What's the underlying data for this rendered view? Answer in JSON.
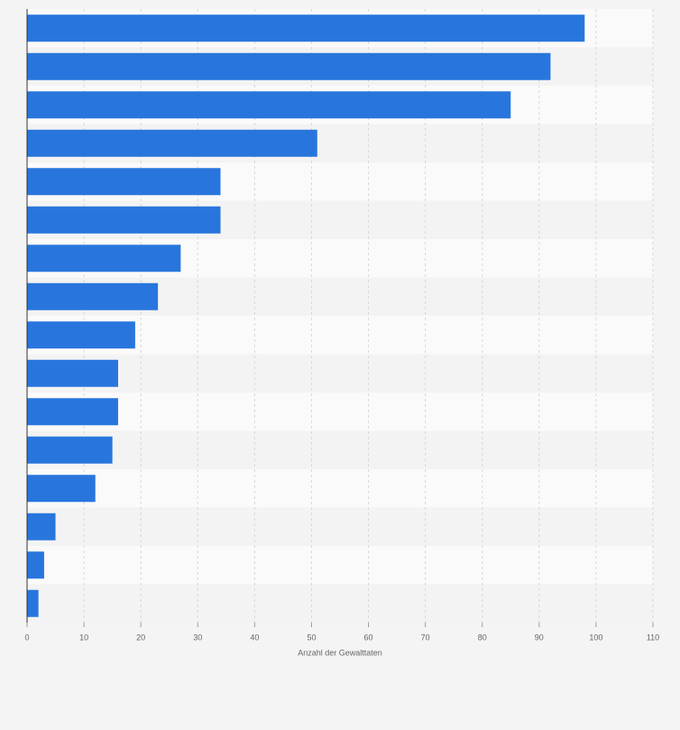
{
  "chart_data": {
    "type": "bar",
    "orientation": "horizontal",
    "x_label": "Anzahl der Gewalttaten",
    "categories": [
      null,
      null,
      null,
      null,
      null,
      null,
      null,
      null,
      null,
      null,
      null,
      null,
      null,
      null,
      null,
      null
    ],
    "values": [
      98,
      92,
      85,
      51,
      34,
      34,
      27,
      23,
      19,
      16,
      16,
      15,
      12,
      5,
      3,
      2
    ],
    "color": "#2876dd",
    "xlim": [
      0,
      110
    ],
    "xticks": [
      0,
      10,
      20,
      30,
      40,
      50,
      60,
      70,
      80,
      90,
      100,
      110
    ],
    "grid": true
  }
}
